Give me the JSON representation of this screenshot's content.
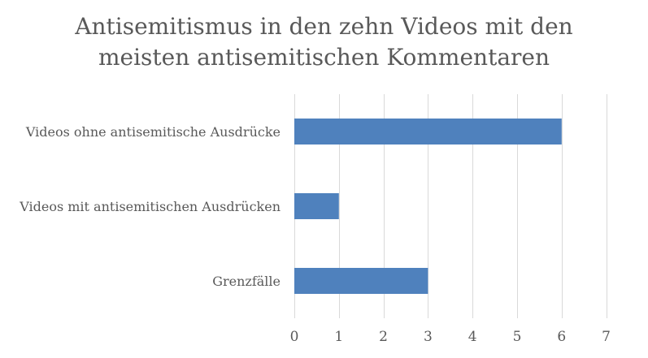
{
  "chart_data": {
    "type": "bar",
    "orientation": "horizontal",
    "title_lines": [
      "Antisemitismus in den zehn Videos mit den",
      "meisten antisemitischen Kommentaren"
    ],
    "categories": [
      "Videos ohne antisemitische Ausdrücke",
      "Videos mit antisemitischen Ausdrücken",
      "Grenzfälle"
    ],
    "values": [
      6,
      1,
      3
    ],
    "xlim": [
      0,
      7
    ],
    "x_ticks": [
      "0",
      "1",
      "2",
      "3",
      "4",
      "5",
      "6",
      "7"
    ],
    "grid": "vertical",
    "legend": "none",
    "bar_color": "#4F81BD",
    "grid_color": "#D9D9D9"
  }
}
